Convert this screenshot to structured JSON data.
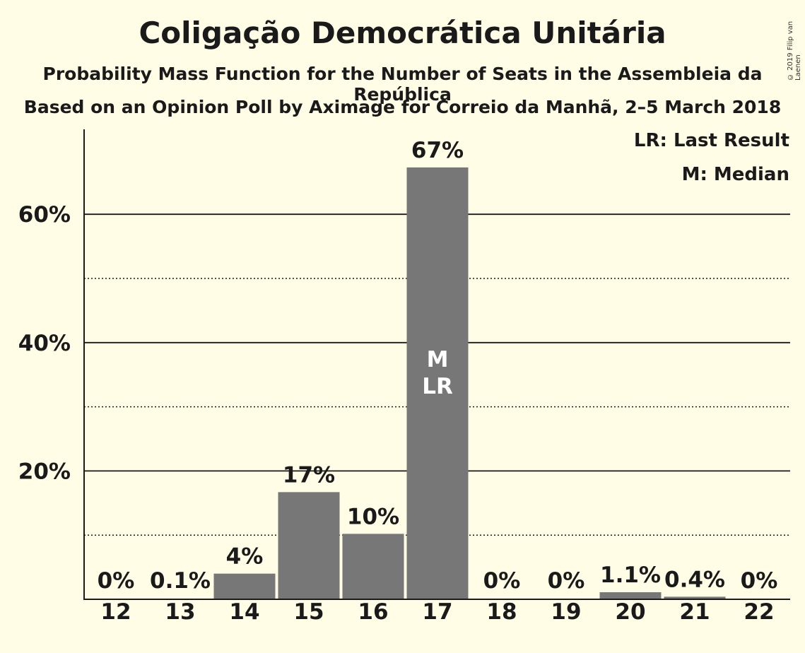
{
  "chart_data": {
    "type": "bar",
    "title": "Coligação Democrática Unitária",
    "subtitle": "Probability Mass Function for the Number of Seats in the Assembleia da República",
    "subtitle2": "Based on an Opinion Poll by Aximage for Correio da Manhã, 2–5 March 2018",
    "categories": [
      "12",
      "13",
      "14",
      "15",
      "16",
      "17",
      "18",
      "19",
      "20",
      "21",
      "22"
    ],
    "values": [
      0,
      0.1,
      4,
      16.7,
      10.2,
      67.3,
      0,
      0,
      1.1,
      0.4,
      0
    ],
    "value_labels": [
      "0%",
      "0.1%",
      "4%",
      "17%",
      "10%",
      "67%",
      "0%",
      "0%",
      "1.1%",
      "0.4%",
      "0%"
    ],
    "y_ticks": [
      {
        "value": 20,
        "label": "20%"
      },
      {
        "value": 40,
        "label": "40%"
      },
      {
        "value": 60,
        "label": "60%"
      }
    ],
    "minor_gridlines": [
      10,
      30,
      50
    ],
    "ylim": [
      0,
      73
    ],
    "grid": true,
    "bar_color": "#777777",
    "background_color": "#fffde6",
    "markers": {
      "category": "17",
      "lines": [
        "M",
        "LR"
      ]
    },
    "legend": {
      "placement": "top-right",
      "entries": [
        "LR: Last Result",
        "M: Median"
      ]
    },
    "copyright": "© 2019 Filip van Laenen"
  }
}
